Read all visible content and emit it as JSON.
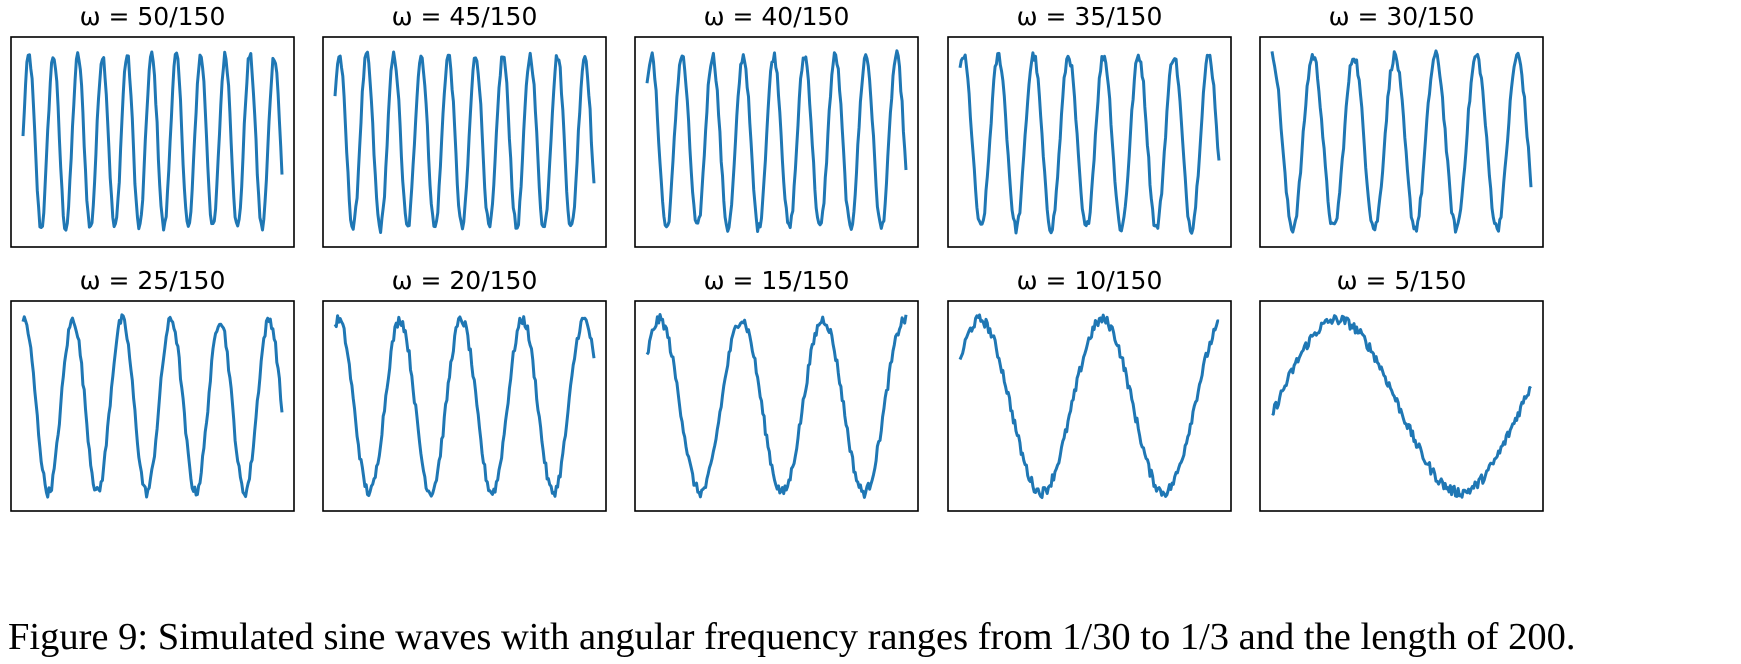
{
  "caption": "Figure 9: Simulated sine waves with angular frequency ranges from 1/30 to 1/3 and the length of 200.",
  "series_color": "#1f77b4",
  "chart_data": [
    {
      "type": "line",
      "title": "ω = 50/150",
      "omega": 0.3333,
      "length": 200,
      "x_range": [
        0,
        199
      ],
      "ylim": [
        -1.1,
        1.1
      ],
      "ticks": "none",
      "grid": false
    },
    {
      "type": "line",
      "title": "ω = 45/150",
      "omega": 0.3,
      "length": 200,
      "x_range": [
        0,
        199
      ],
      "ylim": [
        -1.1,
        1.1
      ],
      "ticks": "none",
      "grid": false
    },
    {
      "type": "line",
      "title": "ω = 40/150",
      "omega": 0.2667,
      "length": 200,
      "x_range": [
        0,
        199
      ],
      "ylim": [
        -1.1,
        1.1
      ],
      "ticks": "none",
      "grid": false
    },
    {
      "type": "line",
      "title": "ω = 35/150",
      "omega": 0.2333,
      "length": 200,
      "x_range": [
        0,
        199
      ],
      "ylim": [
        -1.1,
        1.1
      ],
      "ticks": "none",
      "grid": false
    },
    {
      "type": "line",
      "title": "ω = 30/150",
      "omega": 0.2,
      "length": 200,
      "x_range": [
        0,
        199
      ],
      "ylim": [
        -1.1,
        1.1
      ],
      "ticks": "none",
      "grid": false
    },
    {
      "type": "line",
      "title": "ω = 25/150",
      "omega": 0.1667,
      "length": 200,
      "x_range": [
        0,
        199
      ],
      "ylim": [
        -1.1,
        1.1
      ],
      "ticks": "none",
      "grid": false
    },
    {
      "type": "line",
      "title": "ω = 20/150",
      "omega": 0.1333,
      "length": 200,
      "x_range": [
        0,
        199
      ],
      "ylim": [
        -1.1,
        1.1
      ],
      "ticks": "none",
      "grid": false
    },
    {
      "type": "line",
      "title": "ω = 15/150",
      "omega": 0.1,
      "length": 200,
      "x_range": [
        0,
        199
      ],
      "ylim": [
        -1.1,
        1.1
      ],
      "ticks": "none",
      "grid": false
    },
    {
      "type": "line",
      "title": "ω = 10/150",
      "omega": 0.0667,
      "length": 200,
      "x_range": [
        0,
        199
      ],
      "ylim": [
        -1.1,
        1.1
      ],
      "ticks": "none",
      "grid": false
    },
    {
      "type": "line",
      "title": "ω = 5/150",
      "omega": 0.0333,
      "length": 200,
      "x_range": [
        0,
        199
      ],
      "ylim": [
        -1.1,
        1.1
      ],
      "ticks": "none",
      "grid": false
    }
  ]
}
